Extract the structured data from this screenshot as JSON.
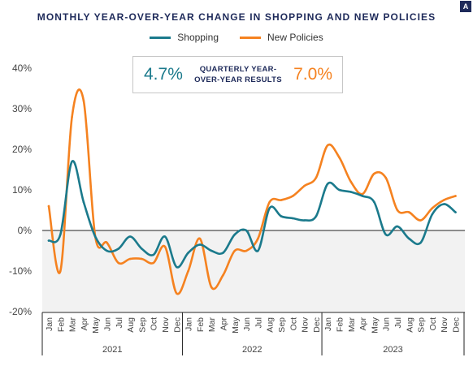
{
  "badge": "A",
  "chart_data": {
    "type": "line",
    "title": "MONTHLY YEAR-OVER-YEAR CHANGE IN SHOPPING AND NEW POLICIES",
    "xlabel": "",
    "ylabel": "",
    "ylim": [
      -20,
      40
    ],
    "yticks": [
      "40%",
      "30%",
      "20%",
      "10%",
      "0%",
      "-10%",
      "-20%"
    ],
    "ytick_values": [
      40,
      30,
      20,
      10,
      0,
      -10,
      -20
    ],
    "grid": false,
    "legend_position": "top-center",
    "categories": [
      "Jan",
      "Feb",
      "Mar",
      "Apr",
      "May",
      "Jun",
      "Jul",
      "Aug",
      "Sep",
      "Oct",
      "Nov",
      "Dec",
      "Jan",
      "Feb",
      "Mar",
      "Apr",
      "May",
      "Jun",
      "Jul",
      "Aug",
      "Sep",
      "Oct",
      "Nov",
      "Dec",
      "Jan",
      "Feb",
      "Mar",
      "Apr",
      "May",
      "Jun",
      "Jul",
      "Aug",
      "Sep",
      "Oct",
      "Nov",
      "Dec"
    ],
    "years": [
      "2021",
      "2022",
      "2023"
    ],
    "series": [
      {
        "name": "Shopping",
        "color": "#1b7a8c",
        "values": [
          -2.5,
          -1,
          17,
          7,
          -1.5,
          -5,
          -4.5,
          -1.5,
          -4.5,
          -6,
          -1.5,
          -9,
          -5.5,
          -3.5,
          -5,
          -5.5,
          -1,
          0,
          -5,
          5.5,
          3.5,
          3,
          2.5,
          3.5,
          11.5,
          10,
          9.5,
          8.5,
          7,
          -1,
          1,
          -2,
          -3,
          4,
          6.5,
          4.5
        ]
      },
      {
        "name": "New Policies",
        "color": "#f58220",
        "values": [
          6,
          -10,
          28,
          32,
          -1.5,
          -3,
          -8,
          -7,
          -7,
          -8,
          -4,
          -15.5,
          -10,
          -2,
          -14,
          -11,
          -5,
          -5,
          -2,
          7,
          7.5,
          8.5,
          11,
          13,
          21,
          18,
          12,
          9,
          14,
          13,
          5,
          4.5,
          2.5,
          5.5,
          7.5,
          8.5
        ]
      }
    ]
  },
  "summary": {
    "shopping_value": "4.7%",
    "label_line1": "QUARTERLY YEAR-",
    "label_line2": "OVER-YEAR RESULTS",
    "new_policies_value": "7.0%"
  }
}
